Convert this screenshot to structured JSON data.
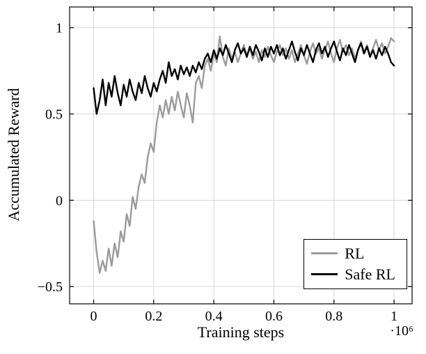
{
  "chart_data": {
    "type": "line",
    "title": "",
    "xlabel": "Training steps",
    "xlabel_multiplier": "·10⁶",
    "ylabel": "Accumulated Reward",
    "xlim": [
      -0.08,
      1.06
    ],
    "ylim": [
      -0.6,
      1.12
    ],
    "x_ticks": [
      0,
      0.2,
      0.4,
      0.6,
      0.8,
      1
    ],
    "x_tick_labels": [
      "0",
      "0.2",
      "0.4",
      "0.6",
      "0.8",
      "1"
    ],
    "y_ticks": [
      -0.5,
      0,
      0.5,
      1
    ],
    "y_tick_labels": [
      "−0.5",
      "0",
      "0.5",
      "1"
    ],
    "grid": true,
    "grid_color": "#d8d8d8",
    "axis_color": "#000000",
    "legend": {
      "position": "bottom-right",
      "entries": [
        {
          "label": "RL",
          "color": "#9b9b9b"
        },
        {
          "label": "Safe RL",
          "color": "#000000"
        }
      ]
    },
    "x": [
      0,
      0.01,
      0.02,
      0.03,
      0.04,
      0.05,
      0.06,
      0.07,
      0.08,
      0.09,
      0.1,
      0.11,
      0.12,
      0.13,
      0.14,
      0.15,
      0.16,
      0.17,
      0.18,
      0.19,
      0.2,
      0.21,
      0.22,
      0.23,
      0.24,
      0.25,
      0.26,
      0.27,
      0.28,
      0.29,
      0.3,
      0.31,
      0.32,
      0.33,
      0.34,
      0.35,
      0.36,
      0.37,
      0.38,
      0.39,
      0.4,
      0.41,
      0.42,
      0.43,
      0.44,
      0.45,
      0.46,
      0.47,
      0.48,
      0.49,
      0.5,
      0.51,
      0.52,
      0.53,
      0.54,
      0.55,
      0.56,
      0.57,
      0.58,
      0.59,
      0.6,
      0.61,
      0.62,
      0.63,
      0.64,
      0.65,
      0.66,
      0.67,
      0.68,
      0.69,
      0.7,
      0.71,
      0.72,
      0.73,
      0.74,
      0.75,
      0.76,
      0.77,
      0.78,
      0.79,
      0.8,
      0.81,
      0.82,
      0.83,
      0.84,
      0.85,
      0.86,
      0.87,
      0.88,
      0.89,
      0.9,
      0.91,
      0.92,
      0.93,
      0.94,
      0.95,
      0.96,
      0.97,
      0.98,
      0.99,
      1
    ],
    "series": [
      {
        "name": "RL",
        "color": "#9b9b9b",
        "values": [
          -0.12,
          -0.3,
          -0.42,
          -0.35,
          -0.41,
          -0.28,
          -0.38,
          -0.25,
          -0.33,
          -0.18,
          -0.24,
          -0.08,
          -0.15,
          0.02,
          -0.05,
          0.08,
          0.15,
          0.1,
          0.25,
          0.33,
          0.28,
          0.45,
          0.55,
          0.48,
          0.58,
          0.5,
          0.6,
          0.52,
          0.63,
          0.55,
          0.48,
          0.62,
          0.55,
          0.45,
          0.68,
          0.72,
          0.65,
          0.78,
          0.82,
          0.75,
          0.85,
          0.8,
          0.95,
          0.83,
          0.78,
          0.88,
          0.82,
          0.86,
          0.8,
          0.85,
          0.9,
          0.84,
          0.88,
          0.82,
          0.86,
          0.8,
          0.87,
          0.83,
          0.89,
          0.84,
          0.8,
          0.86,
          0.9,
          0.84,
          0.88,
          0.82,
          0.87,
          0.8,
          0.85,
          0.9,
          0.84,
          0.79,
          0.86,
          0.91,
          0.85,
          0.88,
          0.82,
          0.87,
          0.92,
          0.85,
          0.8,
          0.88,
          0.93,
          0.86,
          0.9,
          0.84,
          0.88,
          0.82,
          0.87,
          0.92,
          0.86,
          0.9,
          0.84,
          0.88,
          0.93,
          0.87,
          0.91,
          0.85,
          0.89,
          0.94,
          0.92
        ]
      },
      {
        "name": "Safe RL",
        "color": "#000000",
        "values": [
          0.65,
          0.5,
          0.58,
          0.7,
          0.55,
          0.68,
          0.6,
          0.72,
          0.62,
          0.55,
          0.67,
          0.6,
          0.7,
          0.63,
          0.58,
          0.68,
          0.62,
          0.72,
          0.65,
          0.6,
          0.68,
          0.63,
          0.7,
          0.75,
          0.68,
          0.8,
          0.72,
          0.76,
          0.7,
          0.78,
          0.73,
          0.77,
          0.72,
          0.78,
          0.74,
          0.8,
          0.76,
          0.82,
          0.85,
          0.8,
          0.87,
          0.82,
          0.88,
          0.84,
          0.9,
          0.85,
          0.8,
          0.87,
          0.91,
          0.85,
          0.88,
          0.83,
          0.89,
          0.84,
          0.9,
          0.86,
          0.81,
          0.88,
          0.83,
          0.89,
          0.85,
          0.9,
          0.84,
          0.88,
          0.82,
          0.87,
          0.92,
          0.86,
          0.81,
          0.88,
          0.84,
          0.9,
          0.85,
          0.8,
          0.87,
          0.91,
          0.85,
          0.89,
          0.83,
          0.88,
          0.92,
          0.86,
          0.81,
          0.88,
          0.84,
          0.9,
          0.85,
          0.8,
          0.87,
          0.91,
          0.85,
          0.89,
          0.83,
          0.87,
          0.82,
          0.88,
          0.84,
          0.89,
          0.85,
          0.8,
          0.78
        ]
      }
    ]
  }
}
